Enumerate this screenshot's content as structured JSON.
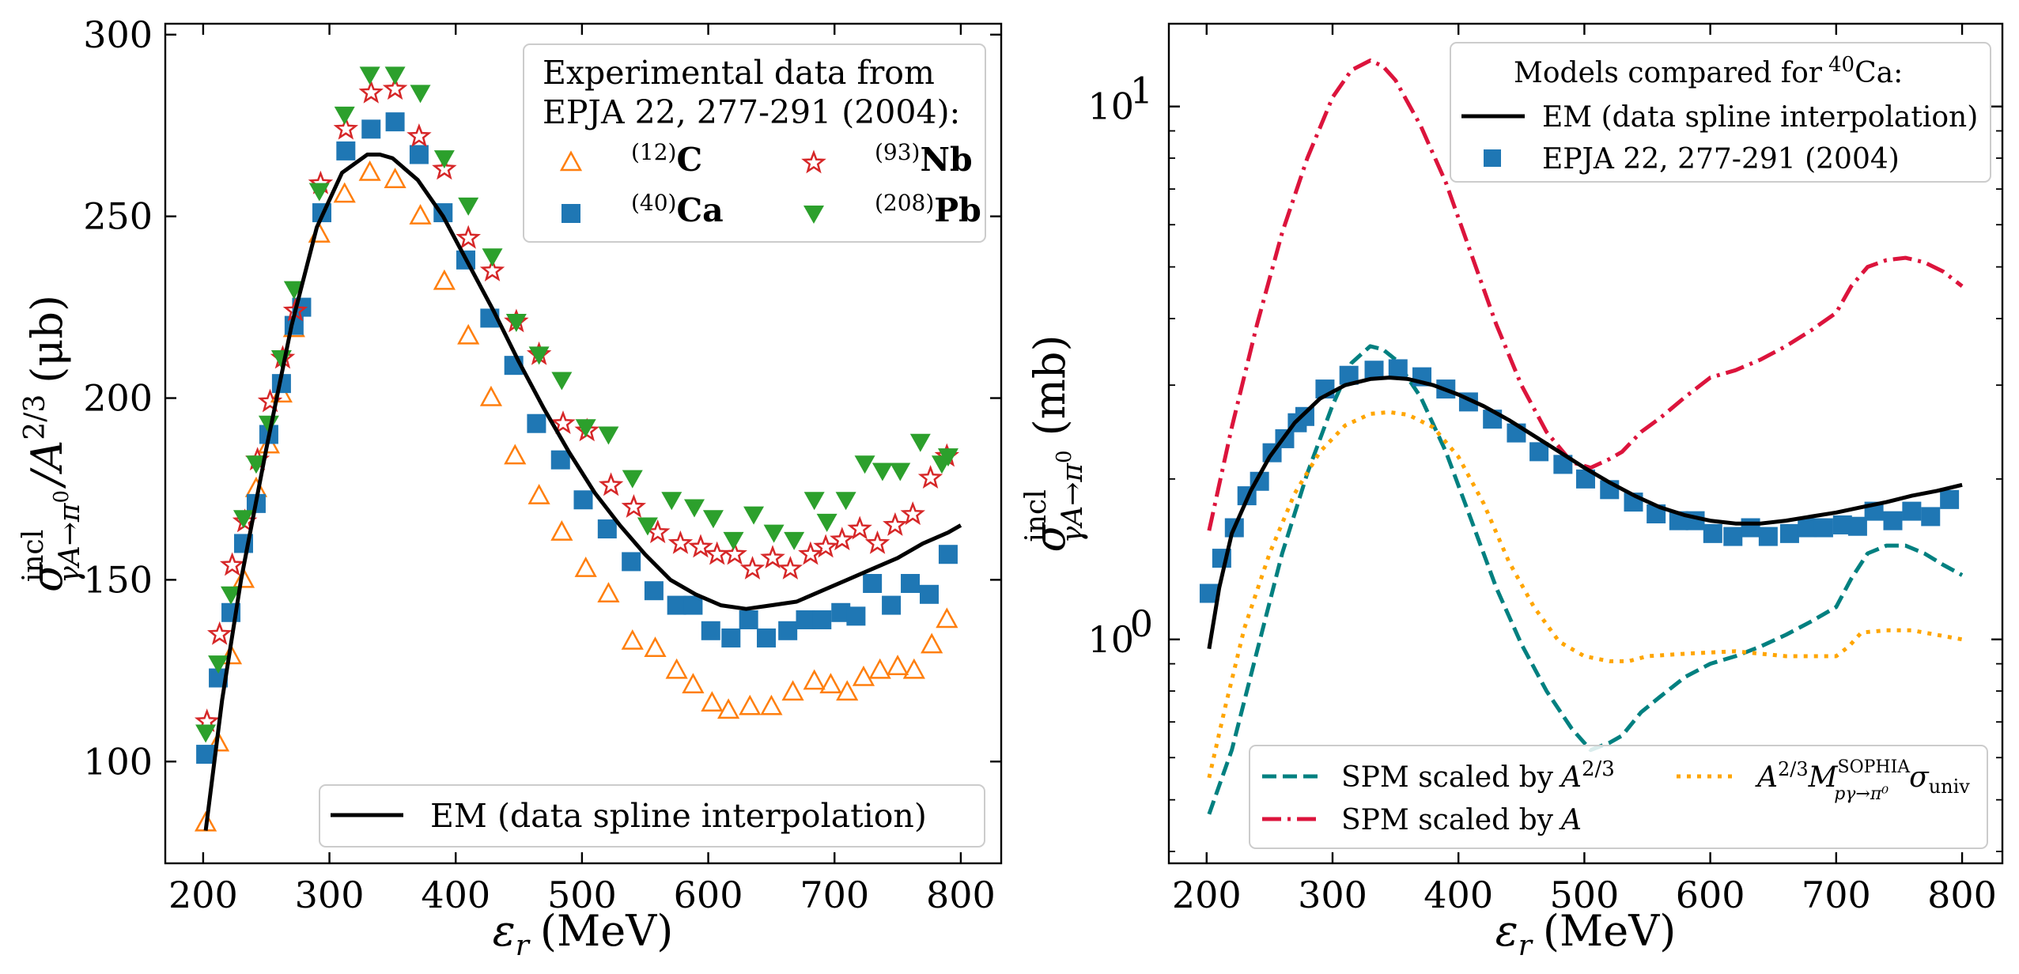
{
  "figure": {
    "left_panel": {
      "ylabel_main": "σ",
      "ylabel_sup": "incl",
      "ylabel_sub": "γA→π",
      "ylabel_sub0": "0",
      "ylabel_rest": "/A",
      "ylabel_exp": "2/3",
      "ylabel_unit": "(μb)",
      "xlabel_eps": "ε",
      "xlabel_sub": "r",
      "xlabel_unit": "(MeV)",
      "legend_title_line1": "Experimental data from",
      "legend_title_line2": "EPJA 22, 277-291 (2004):",
      "legend_em": "EM (data spline interpolation)"
    },
    "right_panel": {
      "ylabel_main": "σ",
      "ylabel_sup": "incl",
      "ylabel_sub": "γA→π",
      "ylabel_sub0": "0",
      "ylabel_unit": "(mb)",
      "xlabel_eps": "ε",
      "xlabel_sub": "r",
      "xlabel_unit": "(MeV)",
      "legend_title": "Models compared for",
      "legend_title_iso_mass": "40",
      "legend_title_iso_el": "Ca:",
      "legend_em": "EM (data spline interpolation)",
      "legend_epja": "EPJA 22, 277-291 (2004)",
      "legend_spm23_text": "SPM scaled by",
      "legend_spm23_A": "A",
      "legend_spm23_exp": "2/3",
      "legend_spmA_text": "SPM scaled by",
      "legend_spmA_A": "A",
      "legend_sophia_A": "A",
      "legend_sophia_exp": "2/3",
      "legend_sophia_M": "M",
      "legend_sophia_Msup": "SOPHIA",
      "legend_sophia_Msub": "pγ→π⁰",
      "legend_sophia_sigma": "σ",
      "legend_sophia_sigmasub": "univ"
    }
  },
  "chart_data": [
    {
      "type": "scatter",
      "panel": "left",
      "xlabel": "ε_r (MeV)",
      "ylabel": "σ^incl_{γA→π0} / A^{2/3} (μb)",
      "xlim": [
        170,
        832
      ],
      "ylim": [
        72,
        303
      ],
      "xticks": [
        200,
        300,
        400,
        500,
        600,
        700,
        800
      ],
      "yticks": [
        100,
        150,
        200,
        250,
        300
      ],
      "legend_placement": "top-right and bottom-right",
      "series": [
        {
          "name": "C",
          "label_sup": "(12)",
          "label_el": "C",
          "marker": "triangle-up-open",
          "color": "#ff7f0e",
          "x": [
            202,
            212,
            222,
            232,
            242,
            252,
            262,
            272,
            292,
            312,
            332,
            352,
            372,
            391,
            410,
            428,
            447,
            466,
            484,
            503,
            521,
            540,
            558,
            575,
            588,
            603,
            616,
            633,
            650,
            667,
            684,
            697,
            710,
            723,
            736,
            750,
            763,
            777,
            789
          ],
          "y": [
            83,
            105,
            129,
            150,
            175,
            187,
            201,
            219,
            245,
            256,
            262,
            260,
            250,
            232,
            217,
            200,
            184,
            173,
            163,
            153,
            146,
            133,
            131,
            125,
            121,
            116,
            114,
            115,
            115,
            119,
            122,
            121,
            119,
            123,
            125,
            126,
            125,
            132,
            139
          ]
        },
        {
          "name": "Ca",
          "label_sup": "(40)",
          "label_el": "Ca",
          "marker": "square",
          "color": "#1f77b4",
          "x": [
            202,
            212,
            222,
            232,
            242,
            252,
            262,
            272,
            278,
            294,
            313,
            333,
            352,
            371,
            390,
            408,
            427,
            446,
            464,
            483,
            501,
            520,
            539,
            557,
            575,
            588,
            602,
            618,
            632,
            646,
            663,
            677,
            690,
            705,
            717,
            730,
            745,
            760,
            775,
            790
          ],
          "y": [
            102,
            123,
            141,
            160,
            171,
            190,
            204,
            220,
            225,
            251,
            268,
            274,
            276,
            267,
            251,
            238,
            222,
            209,
            193,
            183,
            172,
            164,
            155,
            147,
            143,
            143,
            136,
            134,
            139,
            134,
            136,
            139,
            139,
            141,
            140,
            149,
            143,
            149,
            146,
            157
          ]
        },
        {
          "name": "Nb",
          "label_sup": "(93)",
          "label_el": "Nb",
          "marker": "star-open",
          "color": "#d62728",
          "x": [
            203,
            213,
            223,
            233,
            243,
            253,
            263,
            273,
            293,
            313,
            333,
            352,
            371,
            391,
            410,
            429,
            448,
            466,
            485,
            504,
            523,
            541,
            560,
            578,
            594,
            607,
            621,
            635,
            651,
            665,
            681,
            693,
            706,
            720,
            734,
            748,
            762,
            776,
            789
          ],
          "y": [
            111,
            135,
            154,
            166,
            183,
            199,
            211,
            224,
            259,
            274,
            284,
            285,
            272,
            263,
            244,
            235,
            221,
            212,
            193,
            191,
            176,
            170,
            163,
            160,
            159,
            157,
            157,
            153,
            156,
            153,
            157,
            159,
            161,
            164,
            160,
            165,
            168,
            178,
            184
          ]
        },
        {
          "name": "Pb",
          "label_sup": "(208)",
          "label_el": "Pb",
          "marker": "triangle-down",
          "color": "#2ca02c",
          "x": [
            202,
            212,
            222,
            232,
            242,
            252,
            262,
            272,
            292,
            312,
            332,
            352,
            372,
            391,
            410,
            429,
            448,
            466,
            484,
            503,
            521,
            540,
            552,
            571,
            589,
            604,
            620,
            636,
            652,
            668,
            684,
            694,
            709,
            724,
            738,
            752,
            768,
            785,
            790
          ],
          "y": [
            108,
            127,
            146,
            167,
            182,
            193,
            211,
            230,
            257,
            278,
            289,
            289,
            284,
            266,
            253,
            239,
            221,
            212,
            205,
            192,
            190,
            178,
            165,
            172,
            170,
            167,
            161,
            168,
            163,
            161,
            172,
            166,
            172,
            182,
            180,
            180,
            188,
            182,
            184
          ]
        },
        {
          "name": "EM (data spline interpolation)",
          "type": "line",
          "style": "solid",
          "color": "#000000",
          "x": [
            202,
            215,
            230,
            250,
            270,
            290,
            310,
            330,
            340,
            350,
            370,
            390,
            410,
            430,
            450,
            470,
            490,
            510,
            530,
            550,
            570,
            590,
            610,
            630,
            650,
            670,
            690,
            710,
            730,
            750,
            770,
            790,
            800
          ],
          "y": [
            81,
            117,
            150,
            186,
            220,
            247,
            262,
            267,
            267,
            266,
            260,
            250,
            237,
            224,
            210,
            197,
            185,
            174,
            165,
            157,
            150,
            146,
            143,
            142,
            143,
            144,
            147,
            150,
            153,
            156,
            160,
            163,
            165
          ]
        }
      ]
    },
    {
      "type": "line",
      "panel": "right",
      "yscale": "log",
      "xlabel": "ε_r (MeV)",
      "ylabel": "σ^incl_{γA→π0} (mb)",
      "xlim": [
        170,
        832
      ],
      "ylim": [
        0.38,
        14.3
      ],
      "xticks": [
        200,
        300,
        400,
        500,
        600,
        700,
        800
      ],
      "yticks_major": [
        1,
        10
      ],
      "ytick_labels": [
        "10",
        "10"
      ],
      "ytick_exponents": [
        "0",
        "1"
      ],
      "legend_placement": "top-right and bottom-center",
      "series": [
        {
          "name": "EM (data spline interpolation)",
          "style": "solid",
          "color": "#000000",
          "x": [
            202,
            210,
            220,
            235,
            250,
            270,
            290,
            310,
            330,
            345,
            360,
            380,
            400,
            420,
            440,
            460,
            480,
            500,
            520,
            540,
            560,
            580,
            600,
            620,
            640,
            660,
            680,
            700,
            720,
            740,
            760,
            780,
            800
          ],
          "y": [
            0.96,
            1.25,
            1.58,
            1.9,
            2.2,
            2.55,
            2.83,
            3.0,
            3.08,
            3.1,
            3.08,
            3.0,
            2.88,
            2.74,
            2.58,
            2.41,
            2.25,
            2.1,
            1.97,
            1.86,
            1.77,
            1.71,
            1.67,
            1.65,
            1.65,
            1.67,
            1.7,
            1.73,
            1.77,
            1.81,
            1.86,
            1.9,
            1.95
          ]
        },
        {
          "name": "EPJA 22, 277-291 (2004)",
          "style": "markers",
          "marker": "square",
          "color": "#1f77b4",
          "x": [
            202,
            212,
            222,
            232,
            242,
            252,
            262,
            272,
            278,
            294,
            313,
            333,
            352,
            371,
            390,
            408,
            427,
            446,
            464,
            483,
            501,
            520,
            539,
            557,
            575,
            588,
            602,
            618,
            632,
            646,
            663,
            677,
            690,
            705,
            717,
            730,
            745,
            760,
            775,
            790
          ],
          "y": [
            1.22,
            1.42,
            1.62,
            1.86,
            1.98,
            2.24,
            2.38,
            2.55,
            2.62,
            2.95,
            3.13,
            3.2,
            3.22,
            3.11,
            2.95,
            2.79,
            2.59,
            2.44,
            2.25,
            2.13,
            2.0,
            1.91,
            1.81,
            1.72,
            1.67,
            1.67,
            1.58,
            1.56,
            1.62,
            1.56,
            1.58,
            1.62,
            1.62,
            1.64,
            1.63,
            1.74,
            1.67,
            1.74,
            1.7,
            1.83
          ]
        },
        {
          "name": "SPM scaled by A^{2/3}",
          "style": "dashed",
          "color": "#008080",
          "x": [
            202,
            220,
            240,
            260,
            280,
            300,
            315,
            330,
            340,
            350,
            370,
            390,
            410,
            430,
            450,
            470,
            490,
            505,
            520,
            530,
            545,
            560,
            580,
            600,
            620,
            640,
            660,
            680,
            700,
            712,
            725,
            740,
            755,
            770,
            785,
            800
          ],
          "y": [
            0.47,
            0.62,
            0.95,
            1.45,
            2.05,
            2.75,
            3.3,
            3.55,
            3.5,
            3.35,
            2.85,
            2.25,
            1.68,
            1.25,
            0.98,
            0.8,
            0.68,
            0.62,
            0.64,
            0.66,
            0.73,
            0.78,
            0.85,
            0.9,
            0.93,
            0.97,
            1.02,
            1.08,
            1.15,
            1.3,
            1.45,
            1.5,
            1.5,
            1.45,
            1.38,
            1.32
          ]
        },
        {
          "name": "SPM scaled by A",
          "style": "dashdot",
          "color": "#dc143c",
          "x": [
            202,
            220,
            240,
            260,
            280,
            300,
            315,
            330,
            340,
            350,
            370,
            390,
            410,
            430,
            450,
            470,
            490,
            505,
            520,
            530,
            545,
            560,
            580,
            600,
            620,
            640,
            660,
            680,
            700,
            712,
            725,
            740,
            755,
            770,
            785,
            800
          ],
          "y": [
            1.6,
            2.5,
            3.9,
            5.8,
            8.0,
            10.4,
            11.7,
            12.2,
            11.9,
            11.2,
            9.2,
            7.2,
            5.3,
            3.9,
            3.0,
            2.45,
            2.15,
            2.1,
            2.18,
            2.25,
            2.45,
            2.6,
            2.85,
            3.1,
            3.2,
            3.35,
            3.55,
            3.8,
            4.1,
            4.6,
            5.0,
            5.15,
            5.2,
            5.1,
            4.9,
            4.6
          ]
        },
        {
          "name": "A^{2/3} M^{SOPHIA}_{pγ→π0} σ_univ",
          "style": "dotted",
          "color": "#ffa500",
          "x": [
            202,
            215,
            230,
            250,
            270,
            290,
            310,
            330,
            345,
            360,
            380,
            400,
            420,
            440,
            460,
            480,
            500,
            520,
            535,
            550,
            580,
            620,
            660,
            700,
            710,
            720,
            740,
            760,
            780,
            800
          ],
          "y": [
            0.55,
            0.75,
            1.05,
            1.45,
            1.88,
            2.25,
            2.52,
            2.65,
            2.67,
            2.64,
            2.5,
            2.2,
            1.8,
            1.4,
            1.15,
            0.99,
            0.93,
            0.91,
            0.91,
            0.93,
            0.94,
            0.95,
            0.93,
            0.93,
            0.97,
            1.03,
            1.04,
            1.04,
            1.02,
            1.0
          ]
        }
      ]
    }
  ]
}
